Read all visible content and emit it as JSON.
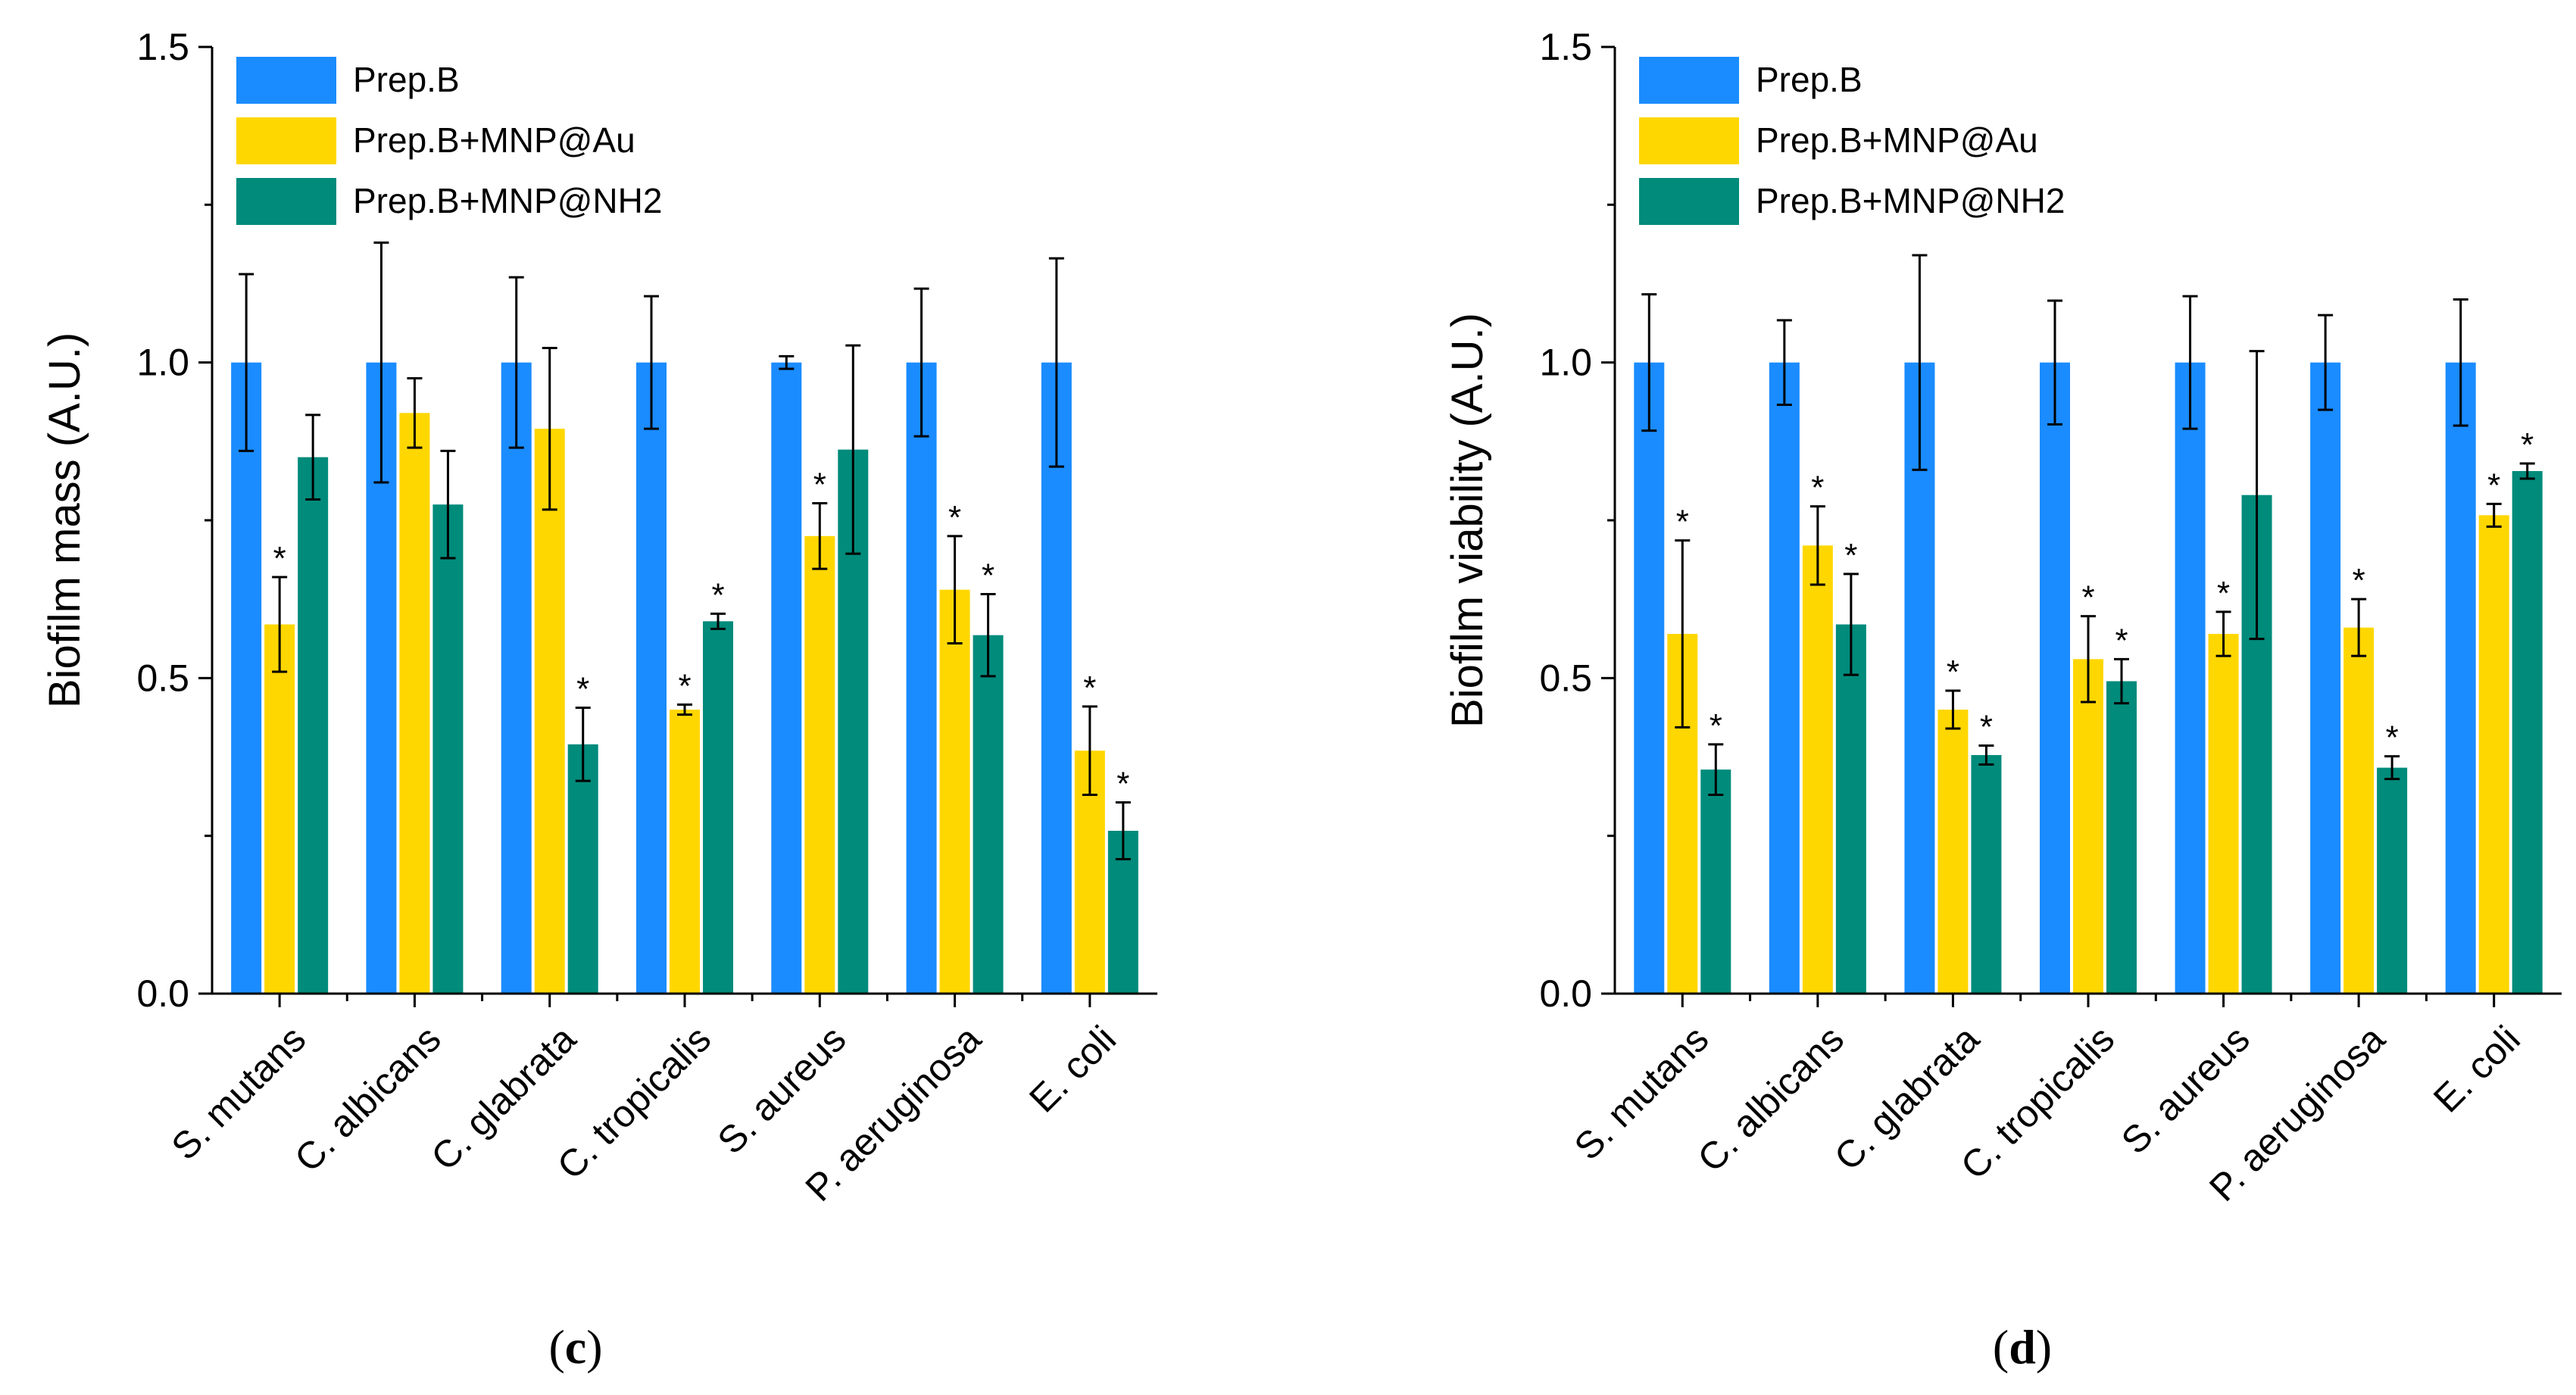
{
  "colors": {
    "series1": "#1a8cff",
    "series2": "#ffd700",
    "series3": "#008b7b",
    "axis": "#000000"
  },
  "chart_data": [
    {
      "type": "bar",
      "panel_label": "c",
      "ylabel": "Biofilm mass (A.U.)",
      "xlabel": "",
      "ylim": [
        0,
        1.5
      ],
      "yticks": [
        "0.0",
        "0.5",
        "1.0",
        "1.5"
      ],
      "legend_position": "top-left",
      "categories": [
        "S. mutans",
        "C. albicans",
        "C. glabrata",
        "C. tropicalis",
        "S. aureus",
        "P. aeruginosa",
        "E. coli"
      ],
      "significance_marker": "*",
      "series": [
        {
          "name": "Prep.B",
          "values": [
            1.0,
            1.0,
            1.0,
            1.0,
            1.0,
            1.0,
            1.0
          ],
          "errors": [
            0.14,
            0.19,
            0.135,
            0.105,
            0.01,
            0.117,
            0.165
          ],
          "significant": [
            false,
            false,
            false,
            false,
            false,
            false,
            false
          ]
        },
        {
          "name": "Prep.B+MNP@Au",
          "values": [
            0.585,
            0.92,
            0.895,
            0.45,
            0.725,
            0.64,
            0.385
          ],
          "errors": [
            0.075,
            0.055,
            0.128,
            0.008,
            0.052,
            0.085,
            0.07
          ],
          "significant": [
            true,
            false,
            false,
            true,
            true,
            true,
            true
          ]
        },
        {
          "name": "Prep.B+MNP@NH2",
          "values": [
            0.85,
            0.775,
            0.395,
            0.59,
            0.862,
            0.568,
            0.258
          ],
          "errors": [
            0.067,
            0.085,
            0.058,
            0.012,
            0.165,
            0.065,
            0.045
          ],
          "significant": [
            false,
            false,
            true,
            true,
            false,
            true,
            true
          ]
        }
      ]
    },
    {
      "type": "bar",
      "panel_label": "d",
      "ylabel": "Biofilm viability (A.U.)",
      "xlabel": "",
      "ylim": [
        0,
        1.5
      ],
      "yticks": [
        "0.0",
        "0.5",
        "1.0",
        "1.5"
      ],
      "legend_position": "top-left",
      "categories": [
        "S. mutans",
        "C. albicans",
        "C. glabrata",
        "C. tropicalis",
        "S. aureus",
        "P. aeruginosa",
        "E. coli"
      ],
      "significance_marker": "*",
      "series": [
        {
          "name": "Prep.B",
          "values": [
            1.0,
            1.0,
            1.0,
            1.0,
            1.0,
            1.0,
            1.0
          ],
          "errors": [
            0.108,
            0.067,
            0.17,
            0.098,
            0.105,
            0.075,
            0.1
          ],
          "significant": [
            false,
            false,
            false,
            false,
            false,
            false,
            false
          ]
        },
        {
          "name": "Prep.B+MNP@Au",
          "values": [
            0.57,
            0.71,
            0.45,
            0.53,
            0.57,
            0.58,
            0.758
          ],
          "errors": [
            0.148,
            0.062,
            0.03,
            0.068,
            0.035,
            0.045,
            0.018
          ],
          "significant": [
            true,
            true,
            true,
            true,
            true,
            true,
            true
          ]
        },
        {
          "name": "Prep.B+MNP@NH2",
          "values": [
            0.355,
            0.585,
            0.378,
            0.495,
            0.79,
            0.358,
            0.828
          ],
          "errors": [
            0.04,
            0.08,
            0.015,
            0.035,
            0.228,
            0.018,
            0.012
          ],
          "significant": [
            true,
            true,
            true,
            true,
            false,
            true,
            true
          ]
        }
      ]
    }
  ]
}
